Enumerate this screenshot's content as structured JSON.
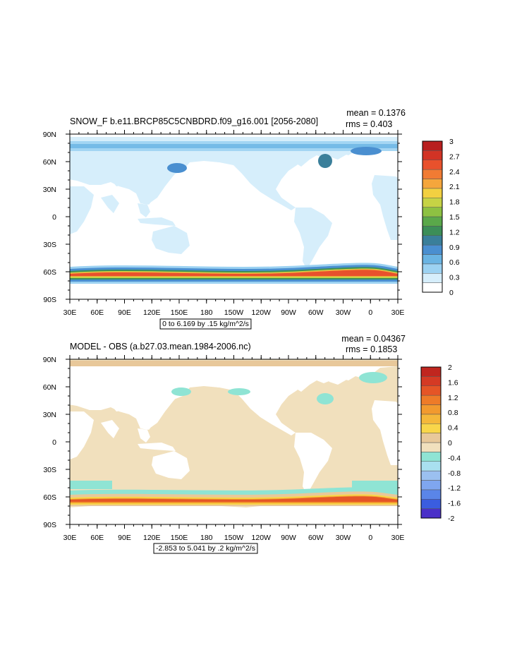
{
  "chart_data": [
    {
      "type": "heatmap",
      "title": "SNOW_F b.e11.BRCP85C5CNBDRD.f09_g16.001 [2056-2080]",
      "stats": {
        "mean": "mean = 0.1376",
        "rms": "rms = 0.403"
      },
      "xticks": [
        "30E",
        "60E",
        "90E",
        "120E",
        "150E",
        "180",
        "150W",
        "120W",
        "90W",
        "60W",
        "30W",
        "0",
        "30E"
      ],
      "yticks": [
        "90N",
        "60N",
        "30N",
        "0",
        "30S",
        "60S",
        "90S"
      ],
      "range_note": "0 to 6.169 by .15 kg/m^2/s",
      "colorbar": {
        "labels": [
          "3",
          "2.7",
          "2.4",
          "2.1",
          "1.8",
          "1.5",
          "1.2",
          "0.9",
          "0.6",
          "0.3",
          "0"
        ],
        "colors": [
          "#ffffff",
          "#d6eefb",
          "#9cd2f2",
          "#6ab4e3",
          "#4a8fd0",
          "#3a7f9a",
          "#3c8e58",
          "#5aa84a",
          "#8dc142",
          "#c6d345",
          "#f2d041",
          "#f5a63c",
          "#f17b33",
          "#e8512c",
          "#d23325",
          "#b81f1f"
        ]
      },
      "region_values": [
        {
          "region": "southern ocean band",
          "value": 2.1
        },
        {
          "region": "northern high latitudes",
          "value": 0.6
        }
      ]
    },
    {
      "type": "heatmap",
      "title": "MODEL - OBS (a.b27.03.mean.1984-2006.nc)",
      "stats": {
        "mean": "mean = 0.04367",
        "rms": "rms = 0.1853"
      },
      "xticks": [
        "30E",
        "60E",
        "90E",
        "120E",
        "150E",
        "180",
        "150W",
        "120W",
        "90W",
        "60W",
        "30W",
        "0",
        "30E"
      ],
      "yticks": [
        "90N",
        "60N",
        "30N",
        "0",
        "30S",
        "60S",
        "90S"
      ],
      "range_note": "-2.853 to 5.041 by .2 kg/m^2/s",
      "colorbar": {
        "labels": [
          "2",
          "1.6",
          "1.2",
          "0.8",
          "0.4",
          "0",
          "-0.4",
          "-0.8",
          "-1.2",
          "-1.6",
          "-2"
        ],
        "colors": [
          "#4a30c8",
          "#3a5de0",
          "#5a85e8",
          "#7fa6ef",
          "#9bc0f0",
          "#a9e0ef",
          "#8fe4d4",
          "#f1e0bd",
          "#e8c89a",
          "#f9d64a",
          "#f5b83a",
          "#f29a2e",
          "#ee7b28",
          "#e55526",
          "#d53a24",
          "#c0261f"
        ]
      },
      "region_values": [
        {
          "region": "ocean background",
          "value": 0.1
        },
        {
          "region": "southern ocean band",
          "value": 1.0
        }
      ]
    }
  ]
}
